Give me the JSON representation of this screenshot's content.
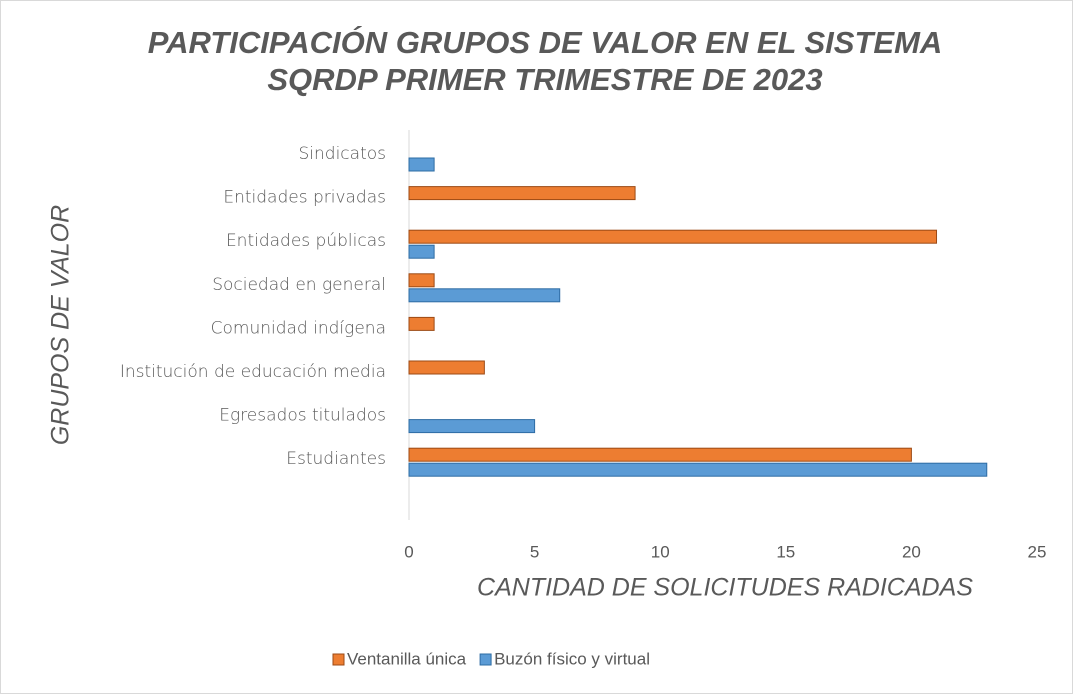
{
  "chart_data": {
    "type": "barh",
    "title": [
      "PARTICIPACIÓN GRUPOS DE VALOR EN EL SISTEMA",
      "SQRDP PRIMER TRIMESTRE DE 2023"
    ],
    "xlabel": "CANTIDAD DE SOLICITUDES RADICADAS",
    "ylabel": "GRUPOS DE VALOR",
    "categories": [
      "Sindicatos",
      "Entidades privadas",
      "Entidades públicas",
      "Sociedad en general",
      "Comunidad indígena",
      "Institución de educación media",
      "Egresados titulados",
      "Estudiantes"
    ],
    "series": [
      {
        "name": "Ventanilla única",
        "color": "#ed7d31",
        "values": [
          0,
          9,
          21,
          1,
          1,
          3,
          0,
          20
        ]
      },
      {
        "name": "Buzón físico y virtual",
        "color": "#5b9bd5",
        "values": [
          1,
          0,
          1,
          6,
          0,
          0,
          5,
          23
        ]
      }
    ],
    "xlim": [
      0,
      25
    ],
    "xticks": [
      0,
      5,
      10,
      15,
      20,
      25
    ],
    "grid": false,
    "legend": "bottom"
  }
}
